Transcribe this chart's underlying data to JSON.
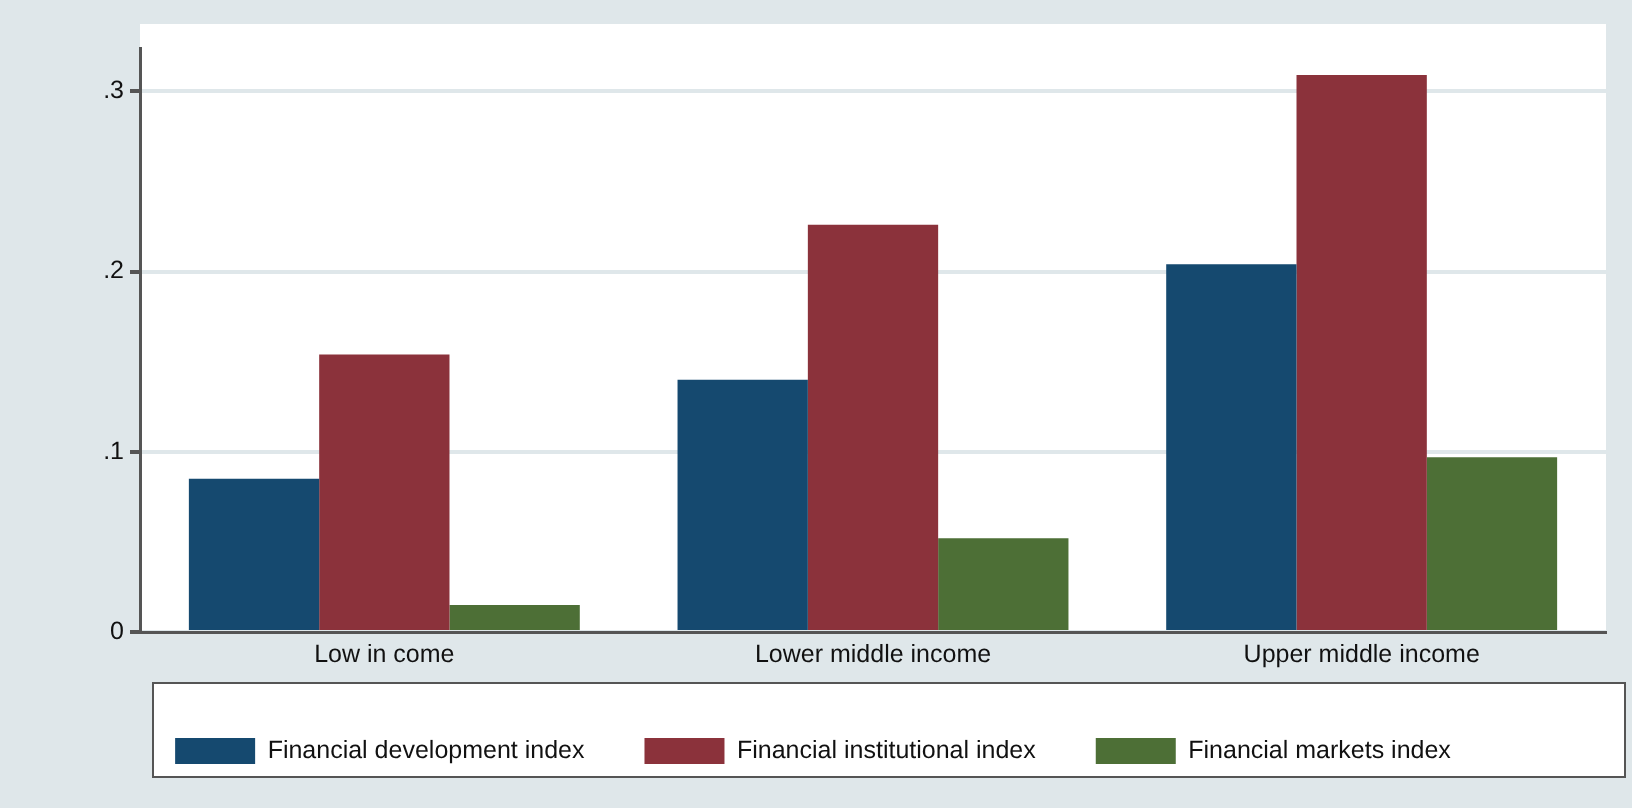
{
  "chart_data": {
    "type": "bar",
    "categories": [
      "Low in come",
      "Lower middle income",
      "Upper middle income"
    ],
    "series": [
      {
        "name": "Financial development index",
        "color": "#15496f",
        "values": [
          0.085,
          0.14,
          0.204
        ]
      },
      {
        "name": "Financial institutional index",
        "color": "#8b323b",
        "values": [
          0.154,
          0.226,
          0.309
        ]
      },
      {
        "name": "Financial markets index",
        "color": "#4d6f36",
        "values": [
          0.015,
          0.052,
          0.097
        ]
      }
    ],
    "ylim": [
      0,
      0.324
    ],
    "yticks": [
      {
        "value": 0,
        "label": "0"
      },
      {
        "value": 0.1,
        "label": ".1"
      },
      {
        "value": 0.2,
        "label": ".2"
      },
      {
        "value": 0.3,
        "label": ".3"
      }
    ],
    "grid": "y",
    "legend": "bottom"
  }
}
